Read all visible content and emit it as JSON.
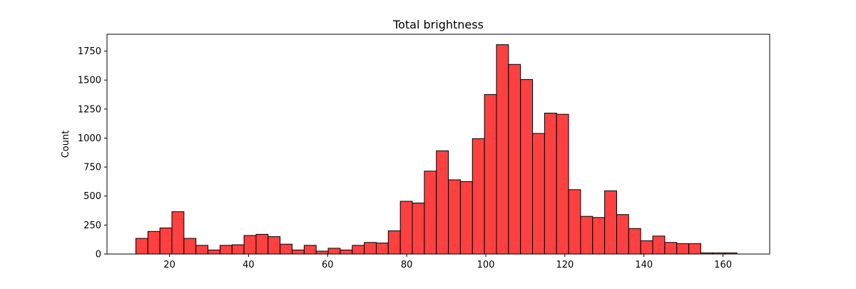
{
  "chart_data": {
    "type": "bar",
    "title": "Total brightness",
    "xlabel": "",
    "ylabel": "Count",
    "xlim": [
      4.2,
      171.8
    ],
    "ylim": [
      0,
      1895
    ],
    "xticks": [
      20,
      40,
      60,
      80,
      100,
      120,
      140,
      160
    ],
    "yticks": [
      0,
      250,
      500,
      750,
      1000,
      1250,
      1500,
      1750
    ],
    "bin_start": 11.5,
    "bin_width": 3.04,
    "values": [
      135,
      195,
      225,
      365,
      135,
      75,
      35,
      75,
      80,
      160,
      170,
      150,
      85,
      35,
      75,
      25,
      50,
      35,
      75,
      100,
      95,
      200,
      455,
      440,
      715,
      890,
      640,
      625,
      995,
      1375,
      1805,
      1635,
      1505,
      1040,
      1215,
      1205,
      555,
      325,
      315,
      545,
      340,
      220,
      115,
      155,
      100,
      90,
      90,
      10,
      10,
      10
    ],
    "bar_color": "#ff4040",
    "edge_color": "#000000",
    "grid": false,
    "legend": false
  }
}
